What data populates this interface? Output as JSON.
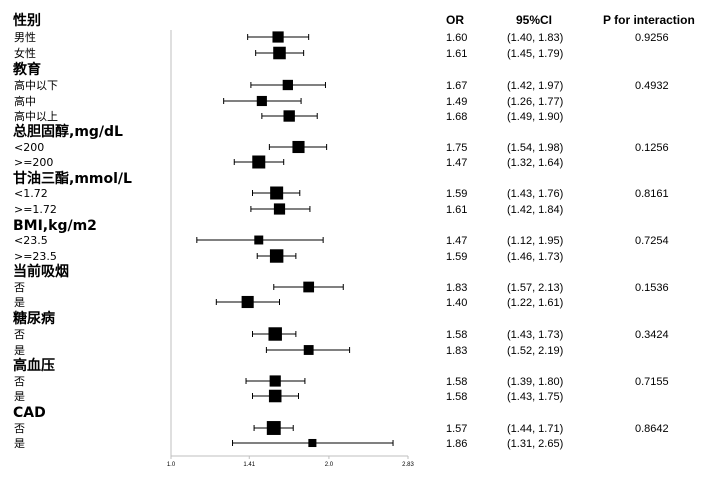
{
  "colors": {
    "ink": "#000000",
    "axis": "#bfbfbf"
  },
  "headers": {
    "or": "OR",
    "ci": "95%CI",
    "p": "P for interaction"
  },
  "chart_data": {
    "type": "forest",
    "xlim": [
      1.0,
      2.83
    ],
    "x_ticks": [
      1.0,
      1.41,
      2.0,
      2.83
    ],
    "x_tick_labels": [
      "1.0",
      "1.41",
      "2.0",
      "2.83"
    ],
    "rows": [
      {
        "kind": "group",
        "label": "性别"
      },
      {
        "kind": "item",
        "label": "男性",
        "or": 1.6,
        "lo": 1.4,
        "hi": 1.83,
        "or_text": "1.60",
        "ci_text": "(1.40, 1.83)",
        "p": "0.9256",
        "weight": 0.8
      },
      {
        "kind": "item",
        "label": "女性",
        "or": 1.61,
        "lo": 1.45,
        "hi": 1.79,
        "or_text": "1.61",
        "ci_text": "(1.45, 1.79)",
        "p": "",
        "weight": 0.95
      },
      {
        "kind": "group",
        "label": "教育"
      },
      {
        "kind": "item",
        "label": "高中以下",
        "or": 1.67,
        "lo": 1.42,
        "hi": 1.97,
        "or_text": "1.67",
        "ci_text": "(1.42, 1.97)",
        "p": "0.4932",
        "weight": 0.7
      },
      {
        "kind": "item",
        "label": "高中",
        "or": 1.49,
        "lo": 1.26,
        "hi": 1.77,
        "or_text": "1.49",
        "ci_text": "(1.26, 1.77)",
        "p": "",
        "weight": 0.68
      },
      {
        "kind": "item",
        "label": "高中以上",
        "or": 1.68,
        "lo": 1.49,
        "hi": 1.9,
        "or_text": "1.68",
        "ci_text": "(1.49, 1.90)",
        "p": "",
        "weight": 0.82
      },
      {
        "kind": "group",
        "label": "总胆固醇,mg/dL"
      },
      {
        "kind": "item",
        "label": "<200",
        "or": 1.75,
        "lo": 1.54,
        "hi": 1.98,
        "or_text": "1.75",
        "ci_text": "(1.54, 1.98)",
        "p": "0.1256",
        "weight": 0.9
      },
      {
        "kind": "item",
        "label": ">=200",
        "or": 1.47,
        "lo": 1.32,
        "hi": 1.64,
        "or_text": "1.47",
        "ci_text": "(1.32, 1.64)",
        "p": "",
        "weight": 1.0
      },
      {
        "kind": "group",
        "label": "甘油三酯,mmol/L"
      },
      {
        "kind": "item",
        "label": "<1.72",
        "or": 1.59,
        "lo": 1.43,
        "hi": 1.76,
        "or_text": "1.59",
        "ci_text": "(1.43, 1.76)",
        "p": "0.8161",
        "weight": 1.0
      },
      {
        "kind": "item",
        "label": ">=1.72",
        "or": 1.61,
        "lo": 1.42,
        "hi": 1.84,
        "or_text": "1.61",
        "ci_text": "(1.42, 1.84)",
        "p": "",
        "weight": 0.8
      },
      {
        "kind": "group",
        "label": "BMI,kg/m2"
      },
      {
        "kind": "item",
        "label": "<23.5",
        "or": 1.47,
        "lo": 1.12,
        "hi": 1.95,
        "or_text": "1.47",
        "ci_text": "(1.12, 1.95)",
        "p": "0.7254",
        "weight": 0.55
      },
      {
        "kind": "item",
        "label": ">=23.5",
        "or": 1.59,
        "lo": 1.46,
        "hi": 1.73,
        "or_text": "1.59",
        "ci_text": "(1.46, 1.73)",
        "p": "",
        "weight": 1.05
      },
      {
        "kind": "group",
        "label": "当前吸烟"
      },
      {
        "kind": "item",
        "label": "否",
        "or": 1.83,
        "lo": 1.57,
        "hi": 2.13,
        "or_text": "1.83",
        "ci_text": "(1.57, 2.13)",
        "p": "0.1536",
        "weight": 0.75
      },
      {
        "kind": "item",
        "label": "是",
        "or": 1.4,
        "lo": 1.22,
        "hi": 1.61,
        "or_text": "1.40",
        "ci_text": "(1.22, 1.61)",
        "p": "",
        "weight": 0.9
      },
      {
        "kind": "group",
        "label": "糖尿病"
      },
      {
        "kind": "item",
        "label": "否",
        "or": 1.58,
        "lo": 1.43,
        "hi": 1.73,
        "or_text": "1.58",
        "ci_text": "(1.43, 1.73)",
        "p": "0.3424",
        "weight": 1.05
      },
      {
        "kind": "item",
        "label": "是",
        "or": 1.83,
        "lo": 1.52,
        "hi": 2.19,
        "or_text": "1.83",
        "ci_text": "(1.52, 2.19)",
        "p": "",
        "weight": 0.65
      },
      {
        "kind": "group",
        "label": "高血压"
      },
      {
        "kind": "item",
        "label": "否",
        "or": 1.58,
        "lo": 1.39,
        "hi": 1.8,
        "or_text": "1.58",
        "ci_text": "(1.39, 1.80)",
        "p": "0.7155",
        "weight": 0.8
      },
      {
        "kind": "item",
        "label": "是",
        "or": 1.58,
        "lo": 1.43,
        "hi": 1.75,
        "or_text": "1.58",
        "ci_text": "(1.43, 1.75)",
        "p": "",
        "weight": 0.95
      },
      {
        "kind": "group",
        "label": "CAD"
      },
      {
        "kind": "item",
        "label": "否",
        "or": 1.57,
        "lo": 1.44,
        "hi": 1.71,
        "or_text": "1.57",
        "ci_text": "(1.44, 1.71)",
        "p": "0.8642",
        "weight": 1.1
      },
      {
        "kind": "item",
        "label": "是",
        "or": 1.86,
        "lo": 1.31,
        "hi": 2.65,
        "or_text": "1.86",
        "ci_text": "(1.31, 2.65)",
        "p": "",
        "weight": 0.45
      }
    ]
  }
}
